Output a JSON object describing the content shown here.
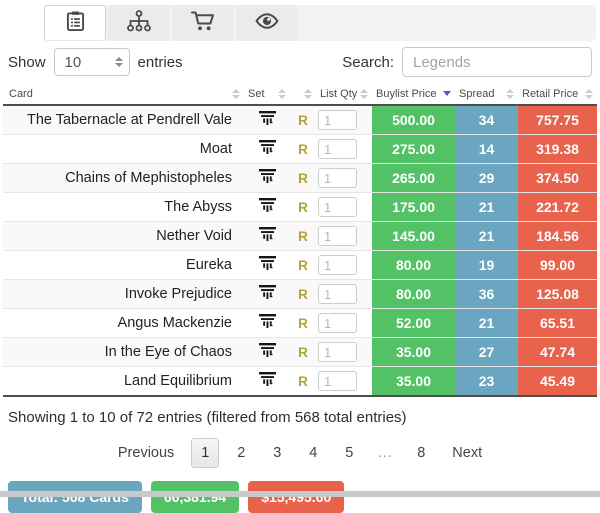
{
  "tabs": {
    "items": [
      {
        "icon": "clipboard-list-icon",
        "active": true
      },
      {
        "icon": "sitemap-icon",
        "active": false
      },
      {
        "icon": "shopping-cart-icon",
        "active": false
      },
      {
        "icon": "eye-icon",
        "active": false
      }
    ]
  },
  "controls": {
    "show_label": "Show",
    "page_size": "10",
    "entries_label": "entries",
    "search_label": "Search:",
    "search_value": "Legends"
  },
  "table": {
    "columns": [
      "Card",
      "Set",
      "",
      "List Qty",
      "Buylist Price",
      "Spread",
      "Retail Price"
    ],
    "sorted_column": "Buylist Price",
    "sort_direction": "desc",
    "rows": [
      {
        "card": "The Tabernacle at Pendrell Vale",
        "set_icon": "legends-set-icon",
        "rarity": "R",
        "list_qty": "1",
        "buylist_price": "500.00",
        "spread": "34",
        "retail_price": "757.75"
      },
      {
        "card": "Moat",
        "set_icon": "legends-set-icon",
        "rarity": "R",
        "list_qty": "1",
        "buylist_price": "275.00",
        "spread": "14",
        "retail_price": "319.38"
      },
      {
        "card": "Chains of Mephistopheles",
        "set_icon": "legends-set-icon",
        "rarity": "R",
        "list_qty": "1",
        "buylist_price": "265.00",
        "spread": "29",
        "retail_price": "374.50"
      },
      {
        "card": "The Abyss",
        "set_icon": "legends-set-icon",
        "rarity": "R",
        "list_qty": "1",
        "buylist_price": "175.00",
        "spread": "21",
        "retail_price": "221.72"
      },
      {
        "card": "Nether Void",
        "set_icon": "legends-set-icon",
        "rarity": "R",
        "list_qty": "1",
        "buylist_price": "145.00",
        "spread": "21",
        "retail_price": "184.56"
      },
      {
        "card": "Eureka",
        "set_icon": "legends-set-icon",
        "rarity": "R",
        "list_qty": "1",
        "buylist_price": "80.00",
        "spread": "19",
        "retail_price": "99.00"
      },
      {
        "card": "Invoke Prejudice",
        "set_icon": "legends-set-icon",
        "rarity": "R",
        "list_qty": "1",
        "buylist_price": "80.00",
        "spread": "36",
        "retail_price": "125.08"
      },
      {
        "card": "Angus Mackenzie",
        "set_icon": "legends-set-icon",
        "rarity": "R",
        "list_qty": "1",
        "buylist_price": "52.00",
        "spread": "21",
        "retail_price": "65.51"
      },
      {
        "card": "In the Eye of Chaos",
        "set_icon": "legends-set-icon",
        "rarity": "R",
        "list_qty": "1",
        "buylist_price": "35.00",
        "spread": "27",
        "retail_price": "47.74"
      },
      {
        "card": "Land Equilibrium",
        "set_icon": "legends-set-icon",
        "rarity": "R",
        "list_qty": "1",
        "buylist_price": "35.00",
        "spread": "23",
        "retail_price": "45.49"
      }
    ]
  },
  "summary": "Showing 1 to 10 of 72 entries (filtered from 568 total entries)",
  "pagination": {
    "previous_label": "Previous",
    "pages": [
      "1",
      "2",
      "3",
      "4",
      "5",
      "...",
      "8"
    ],
    "active_page": "1",
    "next_label": "Next"
  },
  "totals": [
    {
      "label": "Total: 568 Cards",
      "color": "#6aa6bf"
    },
    {
      "label": "66,381.94",
      "color": "#53c266"
    },
    {
      "label": "$15,495.60",
      "color": "#e8624c"
    }
  ],
  "colors": {
    "buylist_cell": "#53c266",
    "spread_cell": "#6aa6bf",
    "retail_cell": "#e8624c",
    "rarity_rare": "#b4a234",
    "sort_active_arrow": "#4a5ec4"
  }
}
